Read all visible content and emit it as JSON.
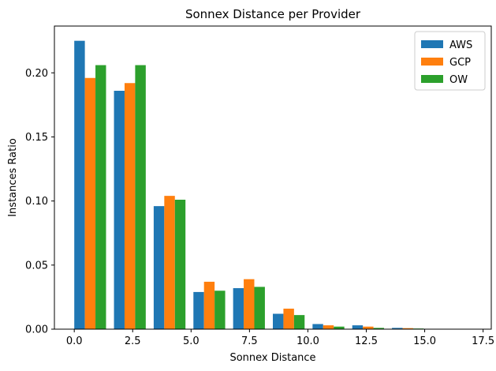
{
  "chart_data": {
    "type": "bar",
    "title": "Sonnex Distance per Provider",
    "xlabel": "Sonnex Distance",
    "ylabel": "Instances Ratio",
    "xlim": [
      -0.85,
      17.85
    ],
    "ylim": [
      0,
      0.2365
    ],
    "xticks": [
      0,
      2.5,
      5,
      7.5,
      10,
      12.5,
      15,
      17.5
    ],
    "xtick_labels": [
      "0.0",
      "2.5",
      "5.0",
      "7.5",
      "10.0",
      "12.5",
      "15.0",
      "17.5"
    ],
    "yticks": [
      0,
      0.05,
      0.1,
      0.15,
      0.2
    ],
    "ytick_labels": [
      "0.00",
      "0.05",
      "0.10",
      "0.15",
      "0.20"
    ],
    "bin_starts": [
      0,
      1.7,
      3.4,
      5.1,
      6.8,
      8.5,
      10.2,
      11.9,
      13.6,
      15.3
    ],
    "bar_width": 0.4533,
    "legend_position": "top-right",
    "grid": false,
    "series": [
      {
        "name": "AWS",
        "color": "#1f77b4",
        "values": [
          0.225,
          0.186,
          0.096,
          0.029,
          0.032,
          0.012,
          0.004,
          0.003,
          0.001,
          0.0
        ]
      },
      {
        "name": "GCP",
        "color": "#ff7f0e",
        "values": [
          0.196,
          0.192,
          0.104,
          0.037,
          0.039,
          0.016,
          0.003,
          0.002,
          0.0008,
          0.0002
        ]
      },
      {
        "name": "OW",
        "color": "#2ca02c",
        "values": [
          0.206,
          0.206,
          0.101,
          0.03,
          0.033,
          0.011,
          0.002,
          0.001,
          0.0005,
          0.0002
        ]
      }
    ]
  }
}
